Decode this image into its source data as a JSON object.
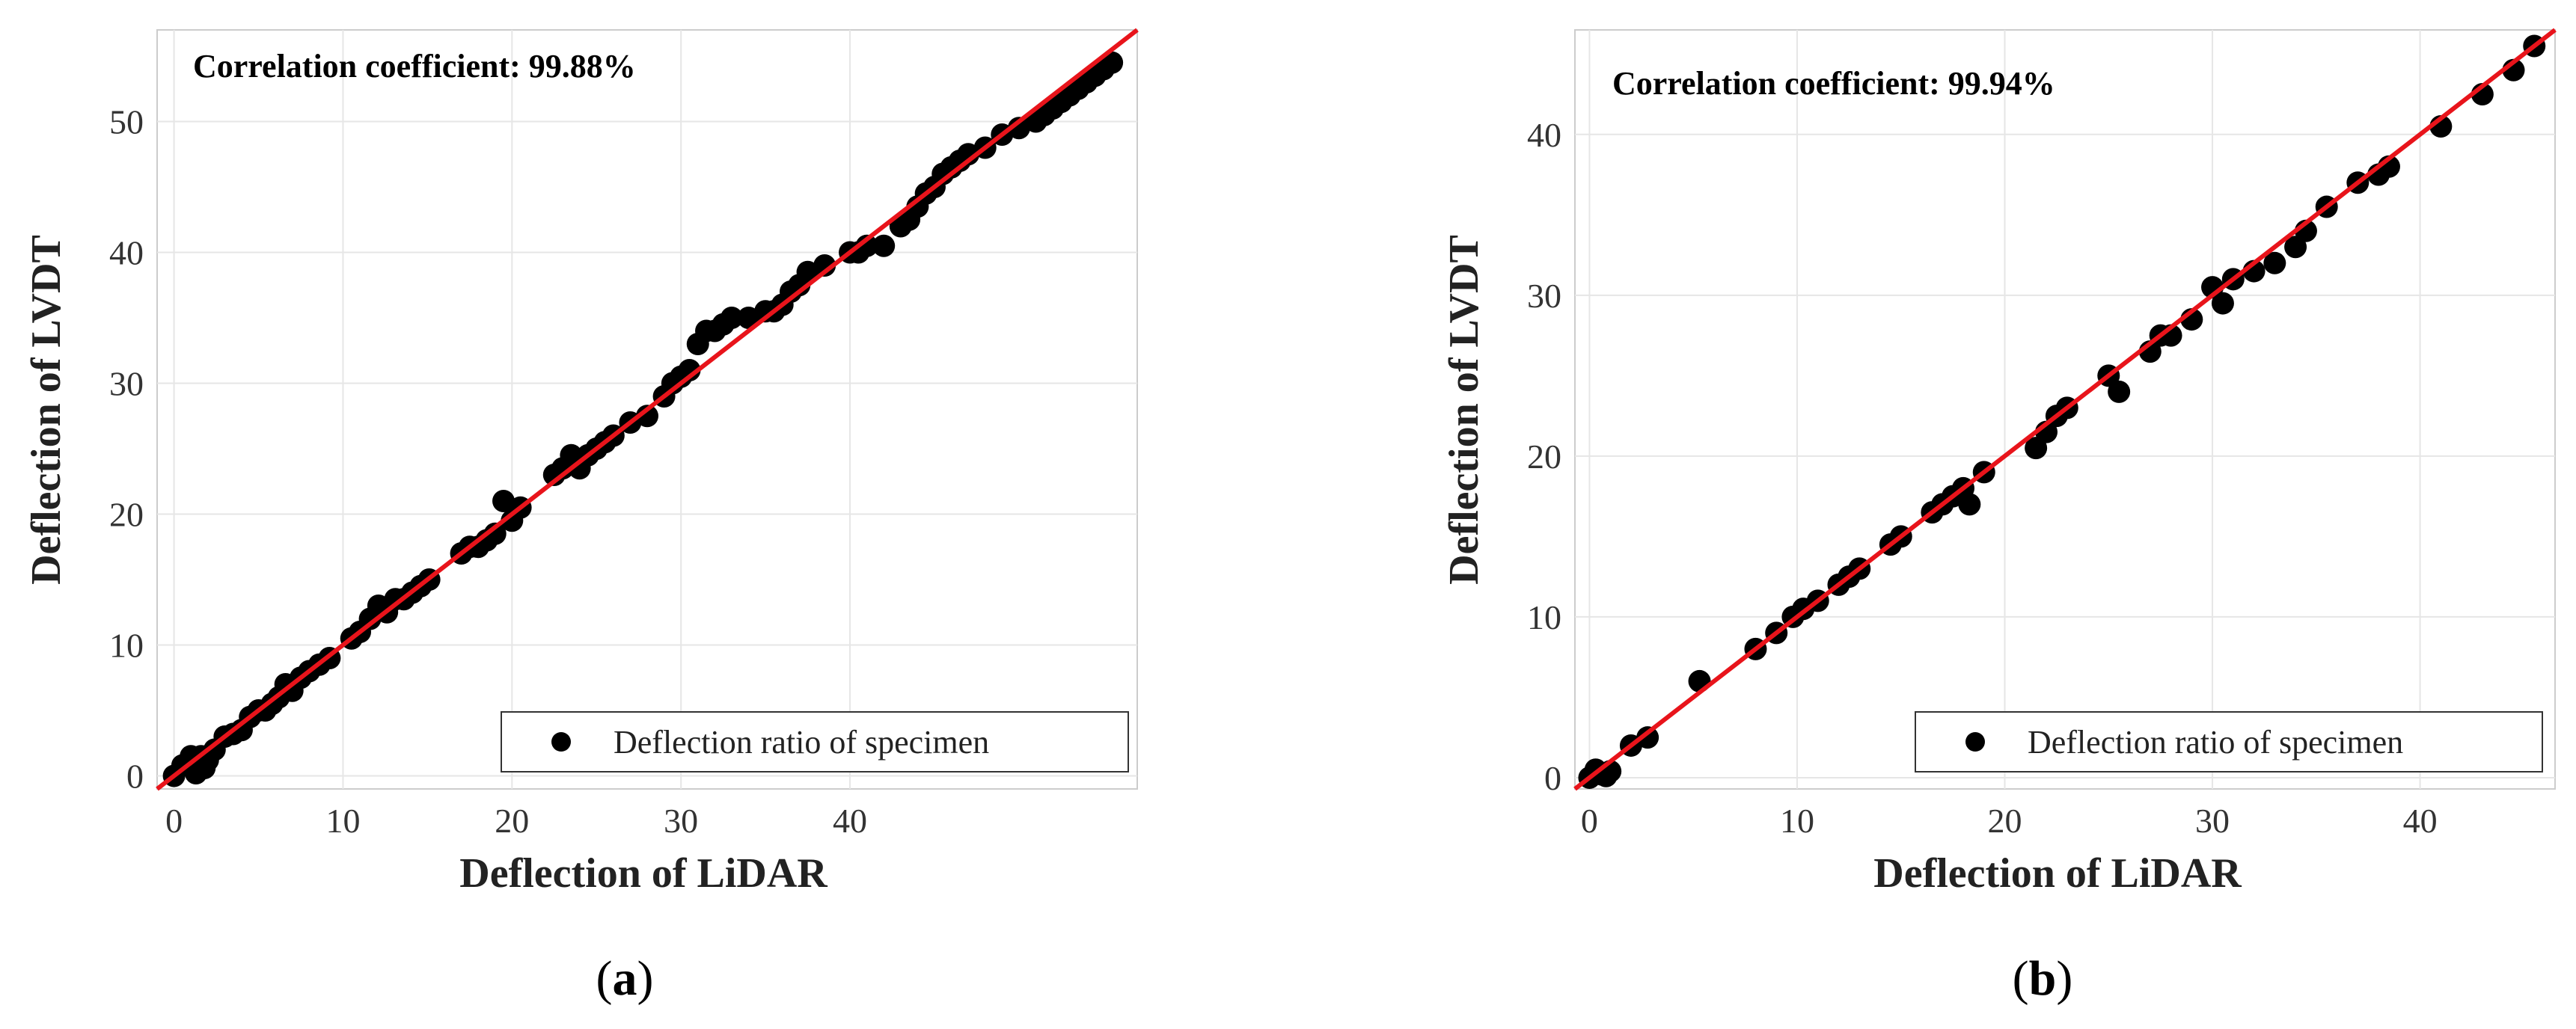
{
  "chart_data": [
    {
      "type": "scatter",
      "panel_label": "a",
      "annotation": "Correlation coefficient: 99.88%",
      "xlabel": "Deflection of LiDAR",
      "ylabel": "Deflection of LVDT",
      "xlim": [
        -1,
        57
      ],
      "ylim": [
        -1,
        57
      ],
      "xticks": [
        0,
        10,
        20,
        30,
        40
      ],
      "yticks": [
        0,
        10,
        20,
        30,
        40,
        50
      ],
      "grid": true,
      "legend": {
        "label": "Deflection ratio of specimen",
        "location": "bottom-right"
      },
      "fit_line": {
        "x": [
          -1,
          57
        ],
        "y": [
          -1,
          57
        ],
        "color": "#e8141b"
      },
      "colors": {
        "points": "#000000",
        "fit": "#e8141b"
      },
      "series": [
        {
          "name": "Deflection ratio of specimen",
          "x": [
            0,
            0.5,
            1.0,
            1.3,
            1.6,
            1.8,
            2.0,
            2.4,
            3.0,
            3.5,
            4.0,
            4.5,
            5.0,
            5.4,
            5.8,
            6.2,
            6.6,
            7.0,
            7.5,
            8.0,
            8.6,
            9.2,
            10.5,
            11.0,
            11.6,
            12.1,
            12.6,
            13.1,
            13.6,
            14.1,
            14.6,
            15.1,
            17.0,
            17.5,
            18.0,
            18.5,
            19.0,
            19.5,
            20.0,
            20.5,
            22.5,
            23.0,
            23.5,
            24.0,
            24.5,
            25.0,
            25.5,
            26.0,
            27.0,
            28.0,
            29.0,
            29.5,
            30.0,
            30.5,
            31.0,
            31.5,
            32.0,
            32.5,
            33.0,
            34.0,
            35.0,
            35.5,
            36.0,
            36.5,
            37.0,
            37.5,
            38.5,
            40.0,
            40.5,
            41.0,
            42.0,
            43.0,
            43.5,
            44.0,
            44.5,
            45.0,
            45.5,
            46.0,
            46.5,
            47.0,
            48.0,
            49.0,
            50.0,
            51.0,
            51.5,
            52.0,
            52.5,
            53.0,
            53.5,
            54.0,
            54.5,
            55.0,
            55.5
          ],
          "y": [
            0,
            0.8,
            1.5,
            0.2,
            1.5,
            0.6,
            1.2,
            2.0,
            3.0,
            3.2,
            3.5,
            4.5,
            5.0,
            5.0,
            5.5,
            6.0,
            7.0,
            6.5,
            7.5,
            8.0,
            8.5,
            9.0,
            10.5,
            11.0,
            12.0,
            13.0,
            12.5,
            13.5,
            13.5,
            14.0,
            14.5,
            15.0,
            17.0,
            17.5,
            17.5,
            18.0,
            18.5,
            21.0,
            19.5,
            20.5,
            23.0,
            23.5,
            24.5,
            23.5,
            24.5,
            25.0,
            25.5,
            26.0,
            27.0,
            27.5,
            29.0,
            30.0,
            30.5,
            31.0,
            33.0,
            34.0,
            34.0,
            34.5,
            35.0,
            35.0,
            35.5,
            35.5,
            36.0,
            37.0,
            37.5,
            38.5,
            39.0,
            40.0,
            40.0,
            40.5,
            40.5,
            42.0,
            42.5,
            43.5,
            44.5,
            45.0,
            46.0,
            46.5,
            47.0,
            47.5,
            48.0,
            49.0,
            49.5,
            50.0,
            50.5,
            51.0,
            51.5,
            52.0,
            52.5,
            53.0,
            53.5,
            54.0,
            54.5
          ]
        }
      ]
    },
    {
      "type": "scatter",
      "panel_label": "b",
      "annotation": "Correlation coefficient: 99.94%",
      "xlabel": "Deflection of LiDAR",
      "ylabel": "Deflection of LVDT",
      "xlim": [
        -0.7,
        46.5
      ],
      "ylim": [
        -0.7,
        46.5
      ],
      "xticks": [
        0,
        10,
        20,
        30,
        40
      ],
      "yticks": [
        0,
        10,
        20,
        30,
        40
      ],
      "grid": true,
      "legend": {
        "label": "Deflection ratio of specimen",
        "location": "bottom-right"
      },
      "fit_line": {
        "x": [
          -0.7,
          46.5
        ],
        "y": [
          -0.7,
          46.5
        ],
        "color": "#e8141b"
      },
      "colors": {
        "points": "#000000",
        "fit": "#e8141b"
      },
      "series": [
        {
          "name": "Deflection ratio of specimen",
          "x": [
            0,
            0.3,
            0.6,
            0.8,
            1.0,
            2.0,
            2.8,
            5.3,
            8.0,
            9.0,
            9.8,
            10.3,
            11.0,
            12.0,
            12.5,
            13.0,
            14.5,
            15.0,
            16.5,
            17.0,
            17.5,
            18.0,
            18.3,
            19.0,
            21.5,
            22.0,
            22.5,
            23.0,
            25.0,
            25.5,
            27.0,
            27.5,
            28.0,
            29.0,
            30.0,
            30.5,
            31.0,
            32.0,
            33.0,
            34.0,
            34.5,
            35.5,
            37.0,
            38.0,
            38.5,
            41.0,
            43.0,
            44.5,
            45.5
          ],
          "y": [
            0,
            0.5,
            0.2,
            0.1,
            0.4,
            2.0,
            2.5,
            6.0,
            8.0,
            9.0,
            10.0,
            10.5,
            11.0,
            12.0,
            12.5,
            13.0,
            14.5,
            15.0,
            16.5,
            17.0,
            17.5,
            18.0,
            17.0,
            19.0,
            20.5,
            21.5,
            22.5,
            23.0,
            25.0,
            24.0,
            26.5,
            27.5,
            27.5,
            28.5,
            30.5,
            29.5,
            31.0,
            31.5,
            32.0,
            33.0,
            34.0,
            35.5,
            37.0,
            37.5,
            38.0,
            40.5,
            42.5,
            44.0,
            45.5
          ]
        }
      ]
    }
  ]
}
